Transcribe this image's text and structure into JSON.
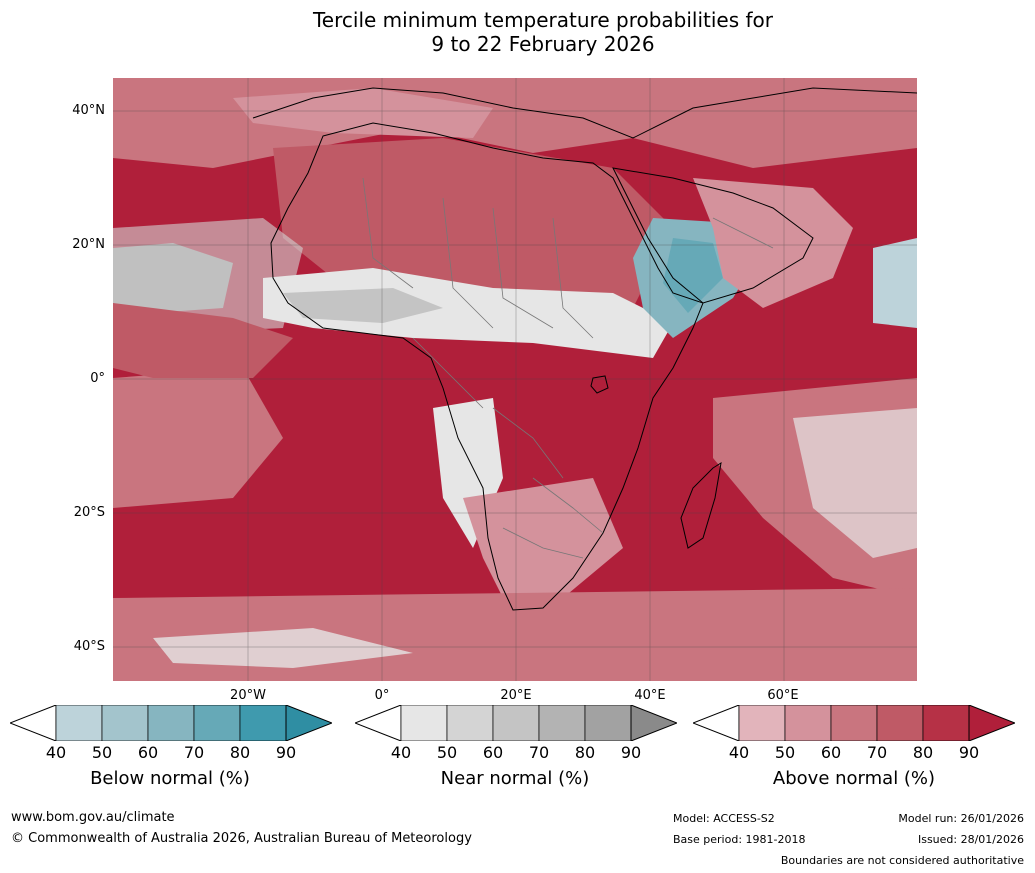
{
  "title": {
    "line1": "Tercile minimum temperature probabilities for",
    "line2": "9 to 22 February 2026"
  },
  "map": {
    "lat_labels": [
      "40°N",
      "20°N",
      "0°",
      "20°S",
      "40°S"
    ],
    "lon_labels": [
      "20°W",
      "0°",
      "20°E",
      "40°E",
      "60°E"
    ]
  },
  "colorbars": [
    {
      "label": "Below normal (%)",
      "ticks": [
        "40",
        "50",
        "60",
        "70",
        "80",
        "90"
      ],
      "colors": [
        "#ffffff",
        "#bdd3da",
        "#a3c4cc",
        "#86b5c0",
        "#66a9b7",
        "#3f9aae",
        "#2f8ea3"
      ]
    },
    {
      "label": "Near normal (%)",
      "ticks": [
        "40",
        "50",
        "60",
        "70",
        "80",
        "90"
      ],
      "colors": [
        "#ffffff",
        "#e6e6e6",
        "#d4d4d4",
        "#c4c4c4",
        "#b3b3b3",
        "#a2a2a2",
        "#8a8a8a"
      ]
    },
    {
      "label": "Above normal (%)",
      "ticks": [
        "40",
        "50",
        "60",
        "70",
        "80",
        "90"
      ],
      "colors": [
        "#ffffff",
        "#e2b4bb",
        "#d4929c",
        "#c9757f",
        "#bf5a66",
        "#b63146",
        "#b01f3a"
      ]
    }
  ],
  "footer": {
    "url": "www.bom.gov.au/climate",
    "copyright": "© Commonwealth of Australia 2026, Australian Bureau of Meteorology",
    "model": "Model: ACCESS-S2",
    "base_period": "Base period: 1981-2018",
    "model_run": "Model run: 26/01/2026",
    "issued": "Issued: 28/01/2026",
    "disclaimer": "Boundaries are not considered authoritative"
  }
}
